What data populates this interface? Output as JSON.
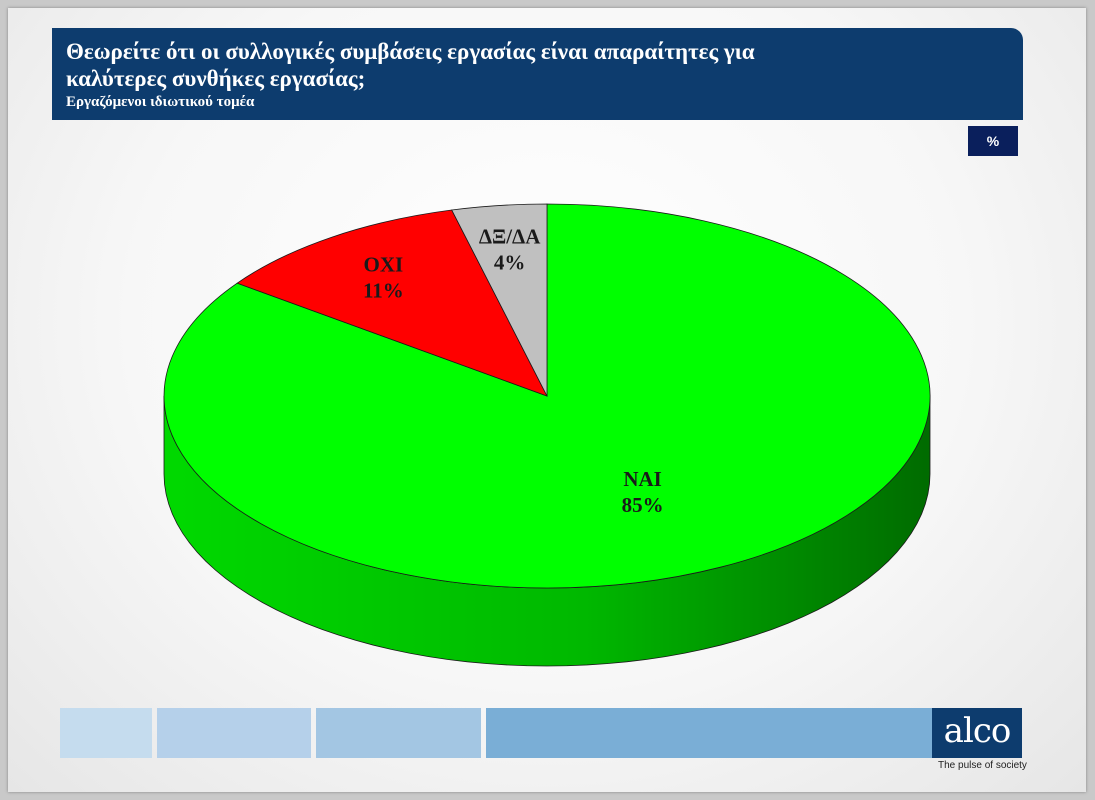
{
  "header": {
    "title": "Θεωρείτε ότι οι συλλογικές συμβάσεις εργασίας είναι απαραίτητες για καλύτερες συνθήκες εργασίας;",
    "subtitle": "Εργαζόμενοι ιδιωτικού τομέα"
  },
  "unit_badge": "%",
  "brand": {
    "logo": "alco",
    "tagline": "The pulse of society"
  },
  "colors": {
    "header_bg": "#0d3c6e",
    "badge_bg": "#0a1f5c",
    "nai": "#00ff00",
    "oxi": "#ff0000",
    "dk": "#c0c0c0",
    "footer_blocks": [
      "#c5dcee",
      "#b5d0ea",
      "#a3c6e3",
      "#7aaed6"
    ]
  },
  "chart_data": {
    "type": "pie",
    "style": "3d",
    "slices": [
      {
        "label": "ΝΑΙ",
        "value": 85,
        "display": "85%",
        "color": "#00ff00"
      },
      {
        "label": "ΟΧΙ",
        "value": 11,
        "display": "11%",
        "color": "#ff0000"
      },
      {
        "label": "ΔΞ/ΔΑ",
        "value": 4,
        "display": "4%",
        "color": "#c0c0c0"
      }
    ],
    "start": "12 o'clock",
    "direction": "clockwise",
    "legend": "none",
    "labels": "inside slices"
  }
}
